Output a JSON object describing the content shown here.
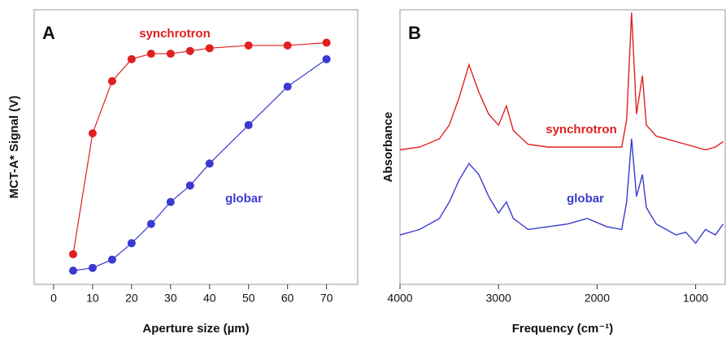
{
  "chart_data": [
    {
      "type": "line",
      "panel": "A",
      "xlabel": "Aperture size (µm)",
      "ylabel": "MCT-A* Signal (V)",
      "markers": true,
      "xlim": [
        -5,
        78
      ],
      "ylim": [
        0,
        1
      ],
      "xticks": [
        0,
        10,
        20,
        30,
        40,
        50,
        60,
        70
      ],
      "x": [
        5,
        10,
        15,
        20,
        25,
        30,
        35,
        40,
        50,
        60,
        70
      ],
      "series": [
        {
          "name": "synchrotron",
          "color": "#e02020",
          "values": [
            0.11,
            0.55,
            0.74,
            0.82,
            0.84,
            0.84,
            0.85,
            0.86,
            0.87,
            0.87,
            0.88
          ]
        },
        {
          "name": "globar",
          "color": "#3a3ad0",
          "values": [
            0.05,
            0.06,
            0.09,
            0.15,
            0.22,
            0.3,
            0.36,
            0.44,
            0.58,
            0.72,
            0.82
          ]
        }
      ]
    },
    {
      "type": "line",
      "panel": "B",
      "xlabel": "Frequency (cm⁻¹)",
      "ylabel": "Absorbance",
      "markers": false,
      "xlim": [
        4000,
        700
      ],
      "ylim": [
        0,
        1
      ],
      "xticks": [
        4000,
        3000,
        2000,
        1000
      ],
      "x": [
        4000,
        3800,
        3600,
        3500,
        3400,
        3300,
        3200,
        3100,
        3000,
        2920,
        2850,
        2700,
        2500,
        2300,
        2100,
        1900,
        1750,
        1700,
        1650,
        1600,
        1540,
        1500,
        1400,
        1300,
        1200,
        1100,
        1000,
        900,
        800,
        720
      ],
      "series": [
        {
          "name": "synchrotron",
          "color": "#e02020",
          "values": [
            0.49,
            0.5,
            0.53,
            0.58,
            0.68,
            0.8,
            0.7,
            0.62,
            0.58,
            0.65,
            0.56,
            0.51,
            0.5,
            0.5,
            0.5,
            0.5,
            0.5,
            0.6,
            0.99,
            0.62,
            0.76,
            0.58,
            0.54,
            0.53,
            0.52,
            0.51,
            0.5,
            0.49,
            0.5,
            0.52
          ]
        },
        {
          "name": "globar",
          "color": "#3a3ad0",
          "values": [
            0.18,
            0.2,
            0.24,
            0.3,
            0.38,
            0.44,
            0.4,
            0.32,
            0.26,
            0.3,
            0.24,
            0.2,
            0.21,
            0.22,
            0.24,
            0.21,
            0.2,
            0.3,
            0.53,
            0.32,
            0.4,
            0.28,
            0.22,
            0.2,
            0.18,
            0.19,
            0.15,
            0.2,
            0.18,
            0.22
          ]
        }
      ]
    }
  ]
}
